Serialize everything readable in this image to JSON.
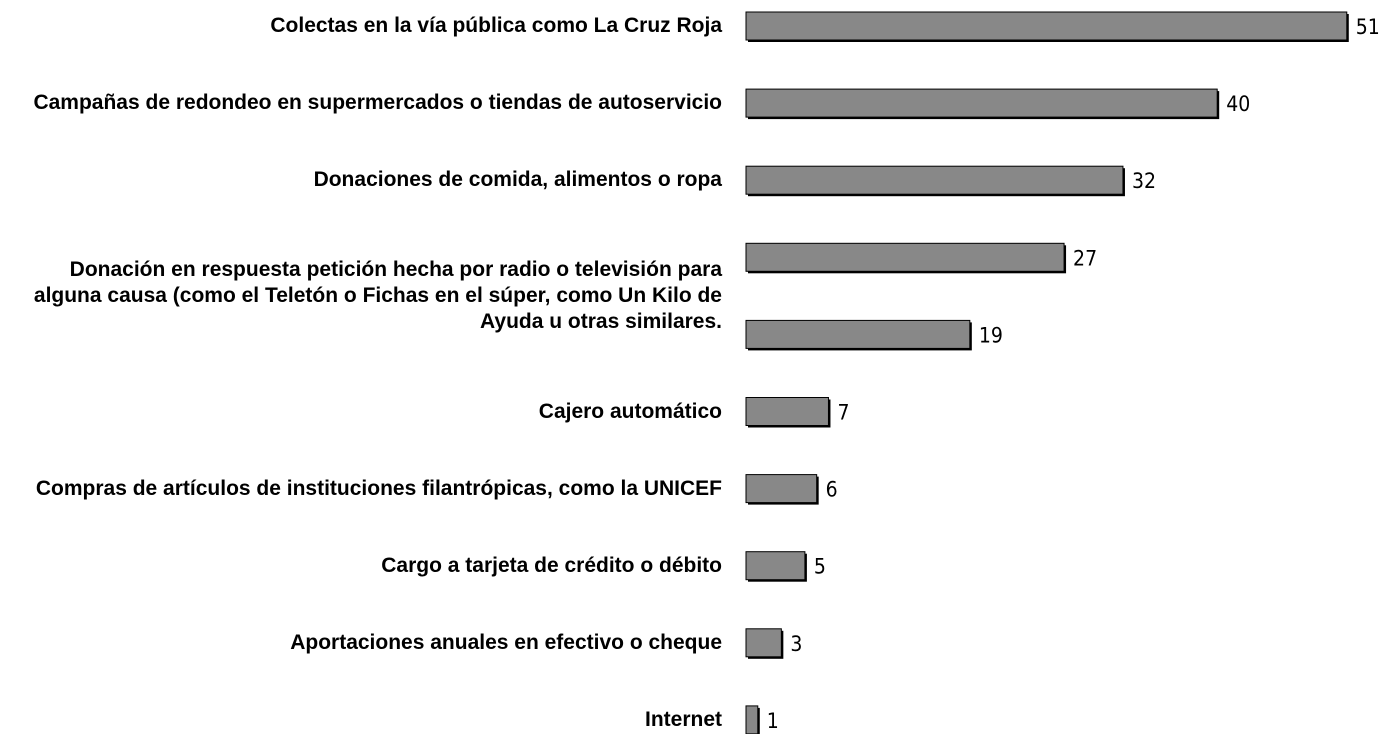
{
  "chart_data": {
    "type": "bar",
    "orientation": "horizontal",
    "color": "#888888",
    "categories": [
      "Colectas en la vía pública como La Cruz Roja",
      "Campañas de redondeo en supermercados o tiendas de autoservicio",
      "Donaciones de comida, alimentos o ropa",
      "Donación en respuesta petición hecha por radio o televisión para alguna causa (como el Teletón o Fichas en el súper, como Un Kilo de Ayuda u otras similares.",
      null,
      "Cajero automático",
      "Compras de artículos de instituciones filantrópicas, como la UNICEF",
      "Cargo a tarjeta de crédito o débito",
      "Aportaciones anuales en efectivo o cheque",
      "Internet"
    ],
    "values": [
      51,
      40,
      32,
      27,
      19,
      7,
      6,
      5,
      3,
      1
    ]
  }
}
